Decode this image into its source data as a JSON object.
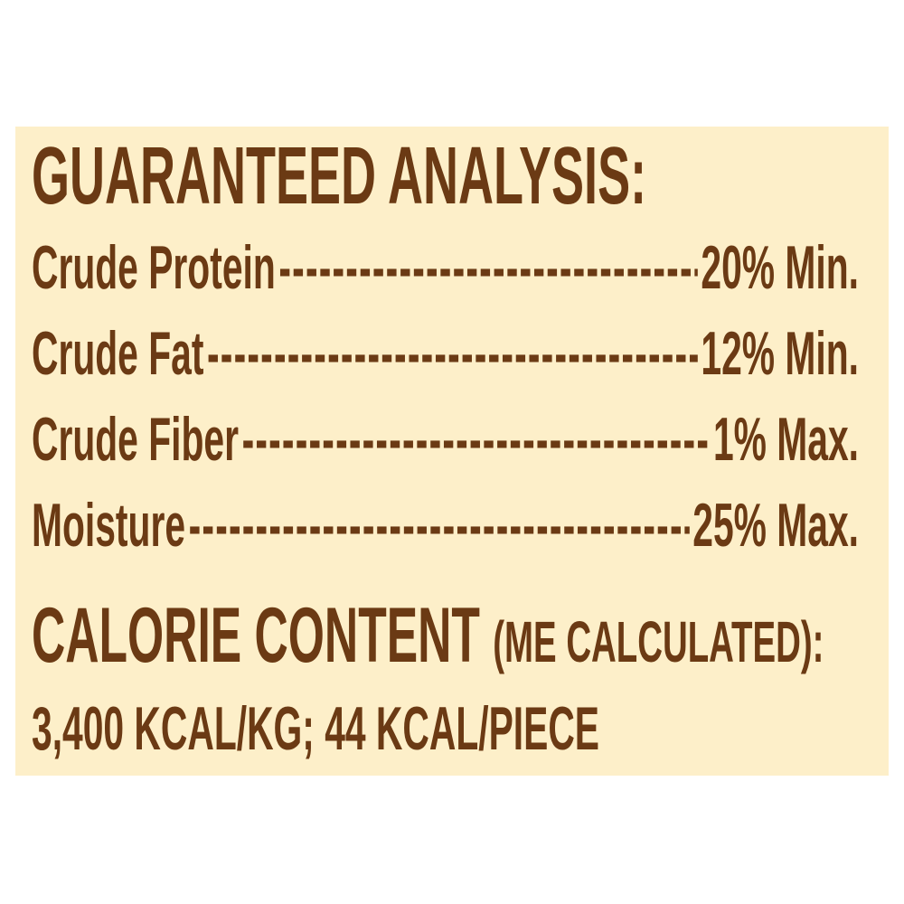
{
  "colors": {
    "background": "#FDEFC9",
    "text": "#6B3A14"
  },
  "heading": "GUARANTEED ANALYSIS:",
  "rows": [
    {
      "label": "Crude Protein",
      "leader": "------------------------------------------------------",
      "value": "20% Min."
    },
    {
      "label": "Crude Fat",
      "leader": "------------------------------------------------------",
      "value": "12% Min."
    },
    {
      "label": "Crude Fiber",
      "leader": "------------------------------------------------------",
      "value": "1% Max."
    },
    {
      "label": "Moisture",
      "leader": "------------------------------------------------------",
      "value": "25% Max."
    }
  ],
  "calorie": {
    "title": "CALORIE CONTENT",
    "qualifier": "(ME CALCULATED):",
    "values": "3,400 KCAL/KG; 44 KCAL/PIECE"
  }
}
